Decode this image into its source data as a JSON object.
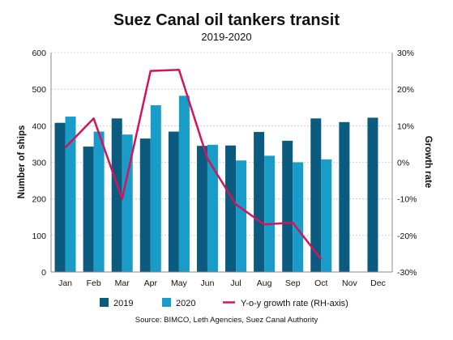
{
  "chart_data": {
    "type": "bar",
    "title": "Suez Canal oil tankers transit",
    "subtitle": "2019-2020",
    "ylabel": "Number of ships",
    "y2label": "Growth rate",
    "categories": [
      "Jan",
      "Feb",
      "Mar",
      "Apr",
      "May",
      "Jun",
      "Jul",
      "Aug",
      "Sep",
      "Oct",
      "Nov",
      "Dec"
    ],
    "ylim": [
      0,
      600
    ],
    "yticks": [
      "0",
      "100",
      "200",
      "300",
      "400",
      "500",
      "600"
    ],
    "y2lim": [
      -30,
      30
    ],
    "y2ticks": [
      "-30%",
      "-20%",
      "-10%",
      "0%",
      "10%",
      "20%",
      "30%"
    ],
    "grid": true,
    "legend_position": "bottom",
    "series": [
      {
        "name": "2019",
        "type": "bar",
        "axis": "left",
        "color": "#0b5a80",
        "values": [
          408,
          343,
          420,
          365,
          384,
          345,
          346,
          383,
          359,
          420,
          410,
          422
        ]
      },
      {
        "name": "2020",
        "type": "bar",
        "axis": "left",
        "color": "#1a9cc9",
        "values": [
          425,
          384,
          376,
          456,
          482,
          348,
          305,
          318,
          300,
          308,
          null,
          null
        ]
      },
      {
        "name": "Y-o-y growth rate (RH-axis)",
        "type": "line",
        "axis": "right",
        "color": "#d4145a",
        "values": [
          4,
          12,
          -10,
          25,
          25.3,
          1,
          -11.5,
          -17,
          -16.5,
          -26.5,
          null,
          null
        ]
      }
    ],
    "source": "Source: BIMCO, Leth Agencies, Suez Canal Authority"
  }
}
